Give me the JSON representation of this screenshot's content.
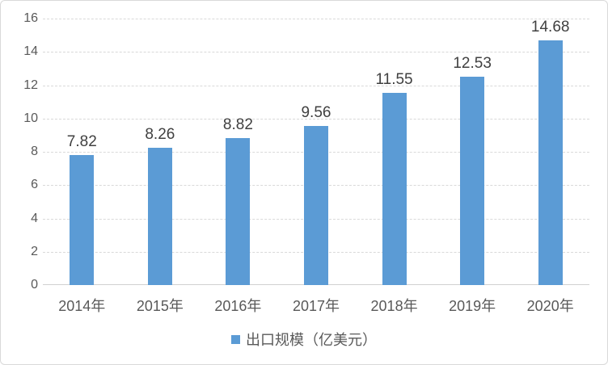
{
  "chart_data": {
    "type": "bar",
    "categories": [
      "2014年",
      "2015年",
      "2016年",
      "2017年",
      "2018年",
      "2019年",
      "2020年"
    ],
    "values": [
      7.82,
      8.26,
      8.82,
      9.56,
      11.55,
      12.53,
      14.68
    ],
    "data_labels": [
      "7.82",
      "8.26",
      "8.82",
      "9.56",
      "11.55",
      "12.53",
      "14.68"
    ],
    "title": "",
    "xlabel": "",
    "ylabel": "",
    "ylim": [
      0,
      16
    ],
    "ytick_step": 2,
    "ytick_labels": [
      "0",
      "2",
      "4",
      "6",
      "8",
      "10",
      "12",
      "14",
      "16"
    ],
    "grid": true,
    "legend_position": "bottom",
    "series_name": "出口规模（亿美元）",
    "colors": {
      "bar": "#5b9bd5",
      "gridline": "#d9d9d9",
      "axis_text": "#595959",
      "data_label_text": "#404040",
      "frame_border": "#d9d9d9"
    }
  },
  "legend": {
    "label": "出口规模（亿美元）",
    "marker_color": "#5b9bd5"
  }
}
